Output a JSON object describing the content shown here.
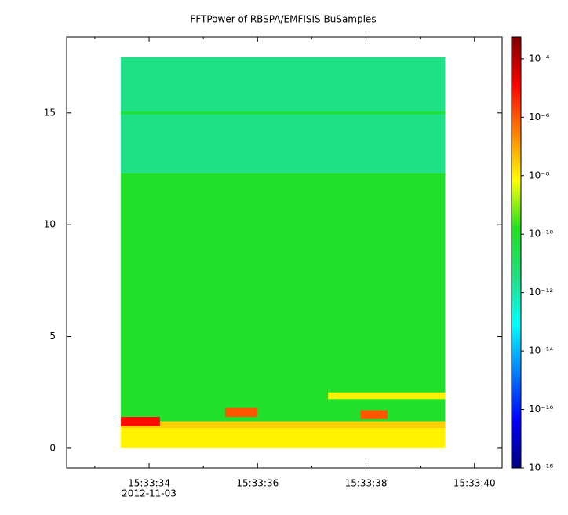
{
  "chart_data": {
    "type": "spectrogram",
    "title": "FFTPower of RBSPA/EMFISIS  BuSamples",
    "date_label": "2012-11-03",
    "xlim": [
      57812.48,
      57820.51
    ],
    "xticks": [
      {
        "value": 57814,
        "label": "15:33:34"
      },
      {
        "value": 57816,
        "label": "15:33:36"
      },
      {
        "value": 57818,
        "label": "15:33:38"
      },
      {
        "value": 57820,
        "label": "15:33:40"
      }
    ],
    "xminor": [
      57813,
      57815,
      57817,
      57819
    ],
    "ylim": [
      -0.88,
      18.4
    ],
    "yticks": [
      0,
      5,
      10,
      15
    ],
    "zlim": [
      1e-18,
      0.00056
    ],
    "zlog": true,
    "zticks": [
      {
        "value": 1e-18,
        "label": "10⁻¹⁸"
      },
      {
        "value": 1e-16,
        "label": "10⁻¹⁶"
      },
      {
        "value": 1e-14,
        "label": "10⁻¹⁴"
      },
      {
        "value": 1e-12,
        "label": "10⁻¹²"
      },
      {
        "value": 1e-10,
        "label": "10⁻¹⁰"
      },
      {
        "value": 1e-08,
        "label": "10⁻⁸"
      },
      {
        "value": 1e-06,
        "label": "10⁻⁶"
      },
      {
        "value": 0.0001,
        "label": "10⁻⁴"
      }
    ],
    "colormap": [
      "#00007f",
      "#0000ff",
      "#007fff",
      "#00ffff",
      "#1fe080",
      "#20e020",
      "#ffff00",
      "#ff8000",
      "#ff0000",
      "#7f0000"
    ],
    "cells": [
      {
        "x": [
          57813.48,
          57819.46
        ],
        "y": [
          12.3,
          17.5
        ],
        "z": 3e-12
      },
      {
        "x": [
          57813.48,
          57819.46
        ],
        "y": [
          14.95,
          15.05
        ],
        "z": 1e-10
      },
      {
        "x": [
          57813.48,
          57819.46
        ],
        "y": [
          1.2,
          12.3
        ],
        "z": 1e-10
      },
      {
        "x": [
          57817.3,
          57819.46
        ],
        "y": [
          2.2,
          2.5
        ],
        "z": 1e-08
      },
      {
        "x": [
          57813.48,
          57819.46
        ],
        "y": [
          0.9,
          1.2
        ],
        "z": 3e-08
      },
      {
        "x": [
          57813.48,
          57819.46
        ],
        "y": [
          0,
          0.9
        ],
        "z": 1e-08
      },
      {
        "x": [
          57813.48,
          57814.2
        ],
        "y": [
          1.0,
          1.4
        ],
        "z": 1e-05
      },
      {
        "x": [
          57815.4,
          57816.0
        ],
        "y": [
          1.4,
          1.8
        ],
        "z": 1e-06
      },
      {
        "x": [
          57817.9,
          57818.4
        ],
        "y": [
          1.3,
          1.7
        ],
        "z": 1e-06
      }
    ]
  }
}
